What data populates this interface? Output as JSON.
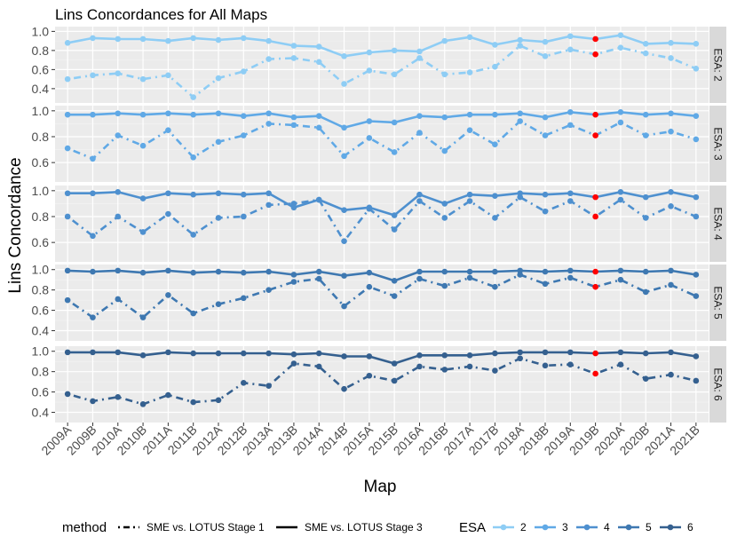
{
  "chart_data": {
    "type": "line",
    "title": "Lins Concordances for All Maps",
    "xlabel": "Map",
    "ylabel": "Lins Concordance",
    "categories": [
      "2009A",
      "2009B",
      "2010A",
      "2010B",
      "2011A",
      "2011B",
      "2012A",
      "2012B",
      "2013A",
      "2013B",
      "2014A",
      "2014B",
      "2015A",
      "2015B",
      "2016A",
      "2016B",
      "2017A",
      "2017B",
      "2018A",
      "2018B",
      "2019A",
      "2019B",
      "2020A",
      "2020B",
      "2021A",
      "2021B"
    ],
    "highlight_category": "2019B",
    "highlight_color": "#ff0000",
    "panel_bg": "#ebebeb",
    "strip_bg": "#d9d9d9",
    "panels": [
      {
        "strip": "ESA: 2",
        "esa": "2",
        "color": "#8ecdf5",
        "ylim": [
          0.25,
          1.05
        ],
        "yticks": [
          "1.0",
          "0.8",
          "0.6",
          "0.4"
        ],
        "stage3": [
          0.88,
          0.93,
          0.92,
          0.92,
          0.9,
          0.93,
          0.91,
          0.93,
          0.9,
          0.85,
          0.84,
          0.74,
          0.78,
          0.8,
          0.79,
          0.9,
          0.94,
          0.86,
          0.91,
          0.89,
          0.95,
          0.92,
          0.96,
          0.87,
          0.88,
          0.87
        ],
        "stage1": [
          0.5,
          0.54,
          0.56,
          0.5,
          0.54,
          0.31,
          0.51,
          0.58,
          0.71,
          0.72,
          0.68,
          0.45,
          0.59,
          0.55,
          0.72,
          0.55,
          0.57,
          0.63,
          0.85,
          0.74,
          0.81,
          0.76,
          0.83,
          0.77,
          0.72,
          0.61
        ]
      },
      {
        "strip": "ESA: 3",
        "esa": "3",
        "color": "#60a9e6",
        "ylim": [
          0.45,
          1.04
        ],
        "yticks": [
          "1.0",
          "0.8",
          "0.6"
        ],
        "stage3": [
          0.97,
          0.97,
          0.98,
          0.97,
          0.98,
          0.97,
          0.98,
          0.96,
          0.98,
          0.95,
          0.96,
          0.87,
          0.92,
          0.91,
          0.96,
          0.95,
          0.97,
          0.97,
          0.98,
          0.95,
          0.99,
          0.97,
          0.99,
          0.97,
          0.98,
          0.96
        ],
        "stage1": [
          0.71,
          0.63,
          0.81,
          0.73,
          0.85,
          0.64,
          0.76,
          0.81,
          0.9,
          0.89,
          0.87,
          0.65,
          0.79,
          0.68,
          0.83,
          0.69,
          0.85,
          0.74,
          0.92,
          0.81,
          0.89,
          0.81,
          0.91,
          0.81,
          0.84,
          0.78
        ]
      },
      {
        "strip": "ESA: 4",
        "esa": "4",
        "color": "#4e90cf",
        "ylim": [
          0.45,
          1.04
        ],
        "yticks": [
          "1.0",
          "0.8",
          "0.6"
        ],
        "stage3": [
          0.98,
          0.98,
          0.99,
          0.94,
          0.98,
          0.97,
          0.98,
          0.97,
          0.98,
          0.87,
          0.93,
          0.85,
          0.87,
          0.81,
          0.97,
          0.9,
          0.97,
          0.96,
          0.98,
          0.97,
          0.98,
          0.95,
          0.99,
          0.95,
          0.99,
          0.95
        ],
        "stage1": [
          0.8,
          0.65,
          0.8,
          0.68,
          0.82,
          0.66,
          0.79,
          0.8,
          0.89,
          0.9,
          0.93,
          0.61,
          0.86,
          0.7,
          0.92,
          0.79,
          0.92,
          0.79,
          0.95,
          0.84,
          0.92,
          0.8,
          0.93,
          0.79,
          0.88,
          0.8
        ]
      },
      {
        "strip": "ESA: 5",
        "esa": "5",
        "color": "#3e78b1",
        "ylim": [
          0.3,
          1.05
        ],
        "yticks": [
          "1.0",
          "0.8",
          "0.6",
          "0.4"
        ],
        "stage3": [
          0.99,
          0.98,
          0.99,
          0.97,
          0.99,
          0.97,
          0.98,
          0.97,
          0.98,
          0.95,
          0.98,
          0.94,
          0.97,
          0.89,
          0.98,
          0.98,
          0.98,
          0.98,
          0.99,
          0.98,
          0.99,
          0.98,
          0.99,
          0.98,
          0.99,
          0.95
        ],
        "stage1": [
          0.7,
          0.53,
          0.71,
          0.53,
          0.75,
          0.57,
          0.66,
          0.72,
          0.8,
          0.88,
          0.91,
          0.64,
          0.83,
          0.74,
          0.91,
          0.84,
          0.92,
          0.83,
          0.95,
          0.86,
          0.92,
          0.83,
          0.9,
          0.78,
          0.85,
          0.74
        ]
      },
      {
        "strip": "ESA: 6",
        "esa": "6",
        "color": "#35608f",
        "ylim": [
          0.3,
          1.05
        ],
        "yticks": [
          "1.0",
          "0.8",
          "0.6",
          "0.4"
        ],
        "stage3": [
          0.99,
          0.99,
          0.99,
          0.96,
          0.99,
          0.98,
          0.98,
          0.98,
          0.98,
          0.97,
          0.98,
          0.95,
          0.95,
          0.88,
          0.96,
          0.96,
          0.96,
          0.98,
          0.99,
          0.99,
          0.99,
          0.98,
          0.99,
          0.98,
          0.99,
          0.95
        ],
        "stage1": [
          0.58,
          0.51,
          0.55,
          0.48,
          0.57,
          0.5,
          0.52,
          0.69,
          0.66,
          0.88,
          0.85,
          0.63,
          0.76,
          0.71,
          0.85,
          0.82,
          0.85,
          0.81,
          0.93,
          0.86,
          0.87,
          0.78,
          0.87,
          0.73,
          0.77,
          0.71
        ]
      }
    ],
    "legend": {
      "position": "bottom",
      "method_title": "method",
      "methods": [
        {
          "label": "SME vs. LOTUS Stage 1",
          "dash": "dotdash"
        },
        {
          "label": "SME vs. LOTUS Stage 3",
          "dash": "solid"
        }
      ],
      "esa_title": "ESA",
      "esa": [
        {
          "label": "2",
          "color": "#8ecdf5"
        },
        {
          "label": "3",
          "color": "#60a9e6"
        },
        {
          "label": "4",
          "color": "#4e90cf"
        },
        {
          "label": "5",
          "color": "#3e78b1"
        },
        {
          "label": "6",
          "color": "#35608f"
        }
      ]
    }
  }
}
